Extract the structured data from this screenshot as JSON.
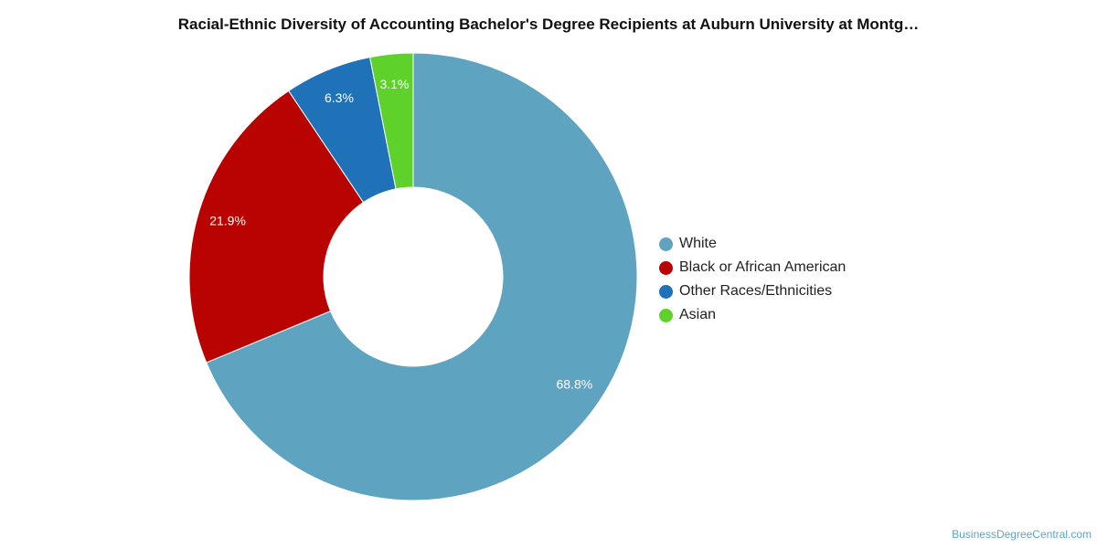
{
  "chart_data": {
    "type": "pie",
    "title": "Racial-Ethnic Diversity of Accounting Bachelor's Degree Recipients at Auburn University at Montg…",
    "donut": true,
    "legend_position": "right",
    "slices": [
      {
        "label": "White",
        "value": 68.8,
        "display": "68.8%",
        "color": "#5ea3c0"
      },
      {
        "label": "Black or African American",
        "value": 21.9,
        "display": "21.9%",
        "color": "#b90300"
      },
      {
        "label": "Other Races/Ethnicities",
        "value": 6.3,
        "display": "6.3%",
        "color": "#1f72b8"
      },
      {
        "label": "Asian",
        "value": 3.1,
        "display": "3.1%",
        "color": "#5ed12a"
      }
    ]
  },
  "source": "BusinessDegreeCentral.com"
}
